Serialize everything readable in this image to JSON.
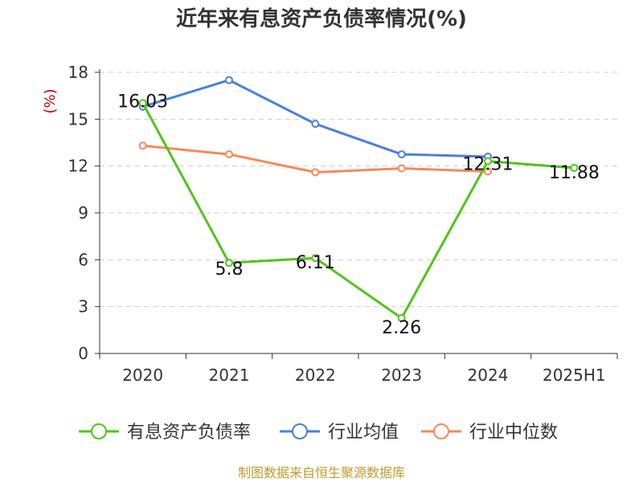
{
  "source_note": "制图数据来自恒生聚源数据库",
  "chart_data": {
    "type": "line",
    "title": "近年来有息资产负债率情况(%)",
    "ylabel": "(%)",
    "ylim": [
      0,
      18
    ],
    "yticks": [
      0,
      3,
      6,
      9,
      12,
      15,
      18
    ],
    "categories": [
      "2020",
      "2021",
      "2022",
      "2023",
      "2024",
      "2025H1"
    ],
    "grid": true,
    "legend_position": "bottom",
    "series": [
      {
        "name": "有息资产负债率",
        "color": "#52c41a",
        "values": [
          16.03,
          5.8,
          6.11,
          2.26,
          12.31,
          11.88
        ],
        "labels": [
          "16.03",
          "5.8",
          "6.11",
          "2.26",
          "12.31",
          "11.88"
        ]
      },
      {
        "name": "行业均值",
        "color": "#4a7fde",
        "values": [
          15.8,
          17.5,
          14.7,
          12.75,
          12.6,
          null
        ]
      },
      {
        "name": "行业中位数",
        "color": "#f5895c",
        "values": [
          13.3,
          12.75,
          11.6,
          11.85,
          11.65,
          null
        ]
      }
    ],
    "colors": {
      "title": "#333333",
      "ylabel": "#cc0000",
      "source": "#c19a2e",
      "grid": "#cccccc",
      "axis": "#333333"
    }
  }
}
